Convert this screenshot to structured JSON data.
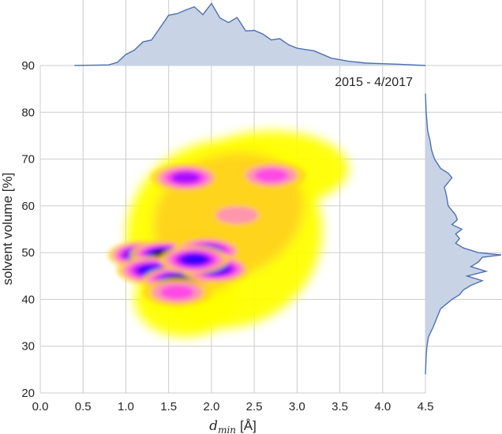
{
  "chart_data": {
    "type": "heatmap",
    "title": "",
    "annotation": "2015 - 4/2017",
    "xlabel": {
      "symbol": "d",
      "subscript": "min",
      "unit": "[Å]"
    },
    "ylabel": "solvent volume [%]",
    "xlim": [
      0.0,
      4.5
    ],
    "ylim": [
      20,
      90
    ],
    "x_ticks": [
      0.0,
      0.5,
      1.0,
      1.5,
      2.0,
      2.5,
      3.0,
      3.5,
      4.0,
      4.5
    ],
    "x_tick_labels": [
      "0.0",
      "0.5",
      "1.0",
      "1.5",
      "2.0",
      "2.5",
      "3.0",
      "3.5",
      "4.0",
      "4.5"
    ],
    "y_ticks": [
      20,
      30,
      40,
      50,
      60,
      70,
      80,
      90
    ],
    "y_tick_labels": [
      "20",
      "30",
      "40",
      "50",
      "60",
      "70",
      "80",
      "90"
    ],
    "grid": true,
    "colormap": [
      "#ffff00",
      "#ffd21e",
      "#ff8cc8",
      "#ff3cf0",
      "#9b00ff",
      "#1e00ff",
      "#000000"
    ],
    "marginal_color": "#4c72b0",
    "marginal_fill": "#c9d3e6",
    "density_peaks": [
      {
        "x": 1.2,
        "y": 49.5,
        "level": 0.95
      },
      {
        "x": 1.45,
        "y": 49.5,
        "level": 0.95
      },
      {
        "x": 1.3,
        "y": 46.2,
        "level": 0.8
      },
      {
        "x": 1.6,
        "y": 44,
        "level": 1.0
      },
      {
        "x": 1.95,
        "y": 50.3,
        "level": 0.9
      },
      {
        "x": 2.05,
        "y": 46.5,
        "level": 0.8
      },
      {
        "x": 1.8,
        "y": 48.5,
        "level": 0.75
      },
      {
        "x": 1.7,
        "y": 66,
        "level": 0.7
      },
      {
        "x": 2.7,
        "y": 66.5,
        "level": 0.5
      },
      {
        "x": 1.6,
        "y": 41.5,
        "level": 0.5
      },
      {
        "x": 2.3,
        "y": 58,
        "level": 0.35
      }
    ],
    "x_marginal": {
      "x": [
        0.4,
        0.8,
        0.9,
        1.0,
        1.1,
        1.2,
        1.3,
        1.4,
        1.5,
        1.6,
        1.7,
        1.8,
        1.9,
        2.0,
        2.1,
        2.2,
        2.3,
        2.4,
        2.5,
        2.6,
        2.7,
        2.8,
        2.9,
        3.0,
        3.2,
        3.4,
        3.6,
        3.8,
        4.0,
        4.2,
        4.5
      ],
      "density": [
        0.0,
        0.01,
        0.05,
        0.18,
        0.25,
        0.35,
        0.45,
        0.6,
        0.8,
        0.88,
        0.87,
        0.96,
        0.85,
        0.97,
        0.8,
        0.7,
        0.75,
        0.6,
        0.55,
        0.5,
        0.45,
        0.4,
        0.35,
        0.3,
        0.2,
        0.12,
        0.07,
        0.04,
        0.03,
        0.02,
        0.0
      ]
    },
    "y_marginal": {
      "y": [
        24,
        28,
        30,
        32,
        34,
        36,
        38,
        40,
        41,
        42,
        43,
        44,
        45,
        46,
        47,
        48,
        49,
        49.5,
        50,
        51,
        52,
        53,
        54,
        55,
        56,
        57,
        58,
        60,
        62,
        64,
        66,
        67,
        68,
        70,
        72,
        74,
        76,
        78,
        80,
        84
      ],
      "density": [
        0.0,
        0.01,
        0.02,
        0.04,
        0.1,
        0.15,
        0.2,
        0.35,
        0.45,
        0.5,
        0.6,
        0.75,
        0.55,
        0.8,
        0.6,
        0.7,
        0.75,
        1.0,
        0.7,
        0.5,
        0.4,
        0.45,
        0.4,
        0.48,
        0.35,
        0.42,
        0.4,
        0.3,
        0.28,
        0.25,
        0.35,
        0.3,
        0.2,
        0.12,
        0.08,
        0.06,
        0.03,
        0.02,
        0.01,
        0.0
      ]
    }
  }
}
